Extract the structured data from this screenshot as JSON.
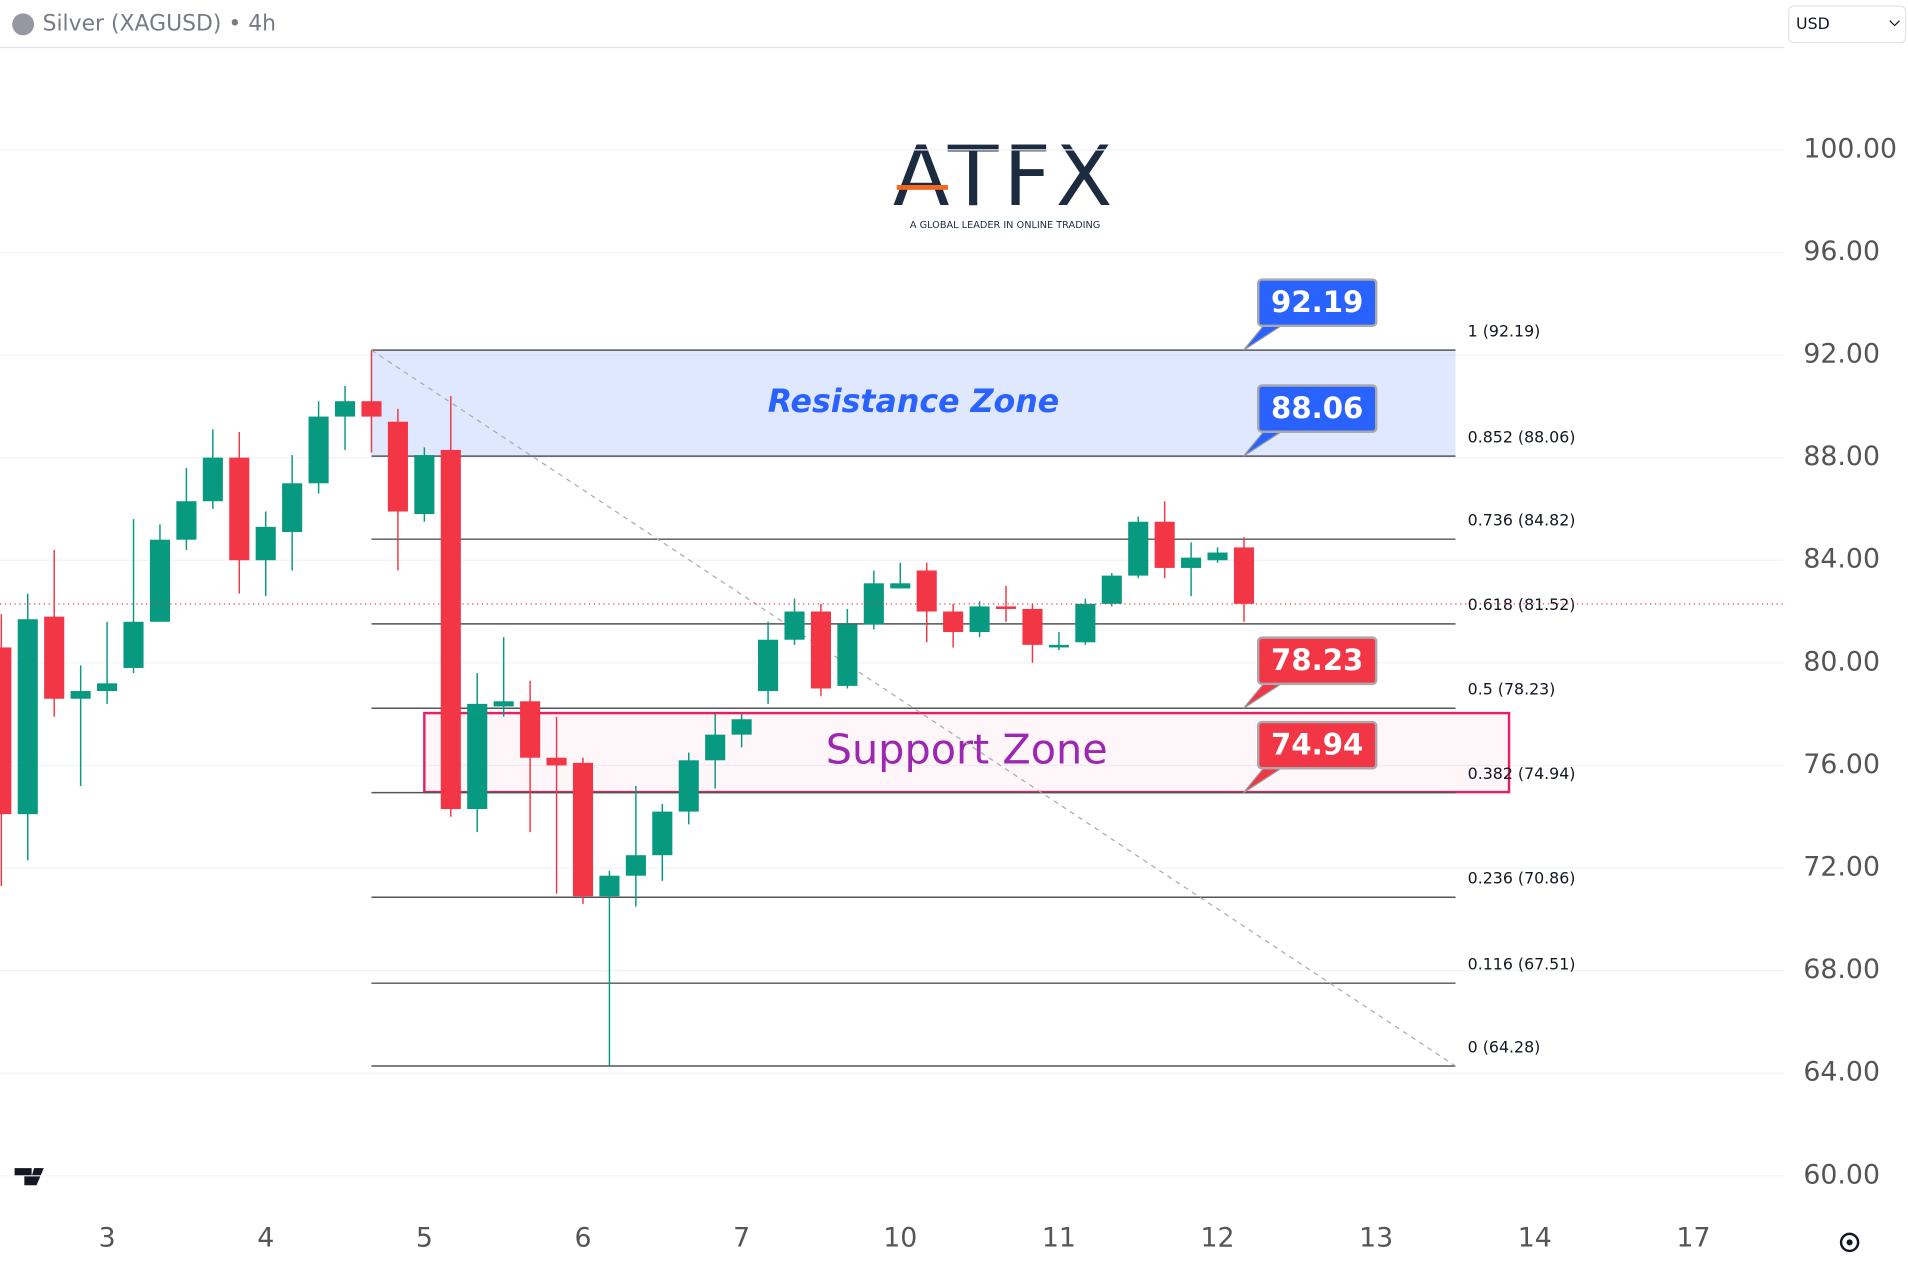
{
  "header": {
    "symbol": "Silver (XAGUSD) • 4h",
    "currency": "USD"
  },
  "logo": {
    "name": "ATFX",
    "tagline": "A GLOBAL LEADER IN ONLINE TRADING"
  },
  "chart_data": {
    "type": "candlestick",
    "x": [
      -4,
      -3,
      -2,
      -1,
      0,
      1,
      2,
      3,
      4,
      5,
      6,
      7,
      8,
      9,
      10,
      11,
      12,
      13,
      14,
      15,
      16,
      17,
      18,
      19,
      20,
      21,
      22,
      23,
      24,
      25,
      26,
      27,
      28,
      29,
      30,
      31,
      32,
      33,
      34,
      35,
      36,
      37,
      38,
      39,
      40,
      41,
      42,
      43
    ],
    "open": [
      80.6,
      74.1,
      81.8,
      78.6,
      78.9,
      79.8,
      81.6,
      84.8,
      86.3,
      88.0,
      84.0,
      85.1,
      87.0,
      89.6,
      90.2,
      89.4,
      85.8,
      88.3,
      74.3,
      78.3,
      78.5,
      76.3,
      76.1,
      70.9,
      71.7,
      72.5,
      74.2,
      76.2,
      77.2,
      78.9,
      80.9,
      82.0,
      79.1,
      81.5,
      82.9,
      83.6,
      82.0,
      81.2,
      82.2,
      82.1,
      80.6,
      80.8,
      82.3,
      83.4,
      85.5,
      83.7,
      84.0,
      84.5
    ],
    "high": [
      81.9,
      82.7,
      84.4,
      79.9,
      81.6,
      85.6,
      85.4,
      87.6,
      89.1,
      89.0,
      85.9,
      88.1,
      90.2,
      90.8,
      92.19,
      89.9,
      88.4,
      90.4,
      79.6,
      81.0,
      79.3,
      77.9,
      76.3,
      71.9,
      75.2,
      74.5,
      76.5,
      78.0,
      78.0,
      81.6,
      82.5,
      82.3,
      82.1,
      83.6,
      83.9,
      83.9,
      82.3,
      82.4,
      83.0,
      82.3,
      81.2,
      82.5,
      83.5,
      85.7,
      86.3,
      84.7,
      84.5,
      84.9
    ],
    "low": [
      71.3,
      72.3,
      77.9,
      75.2,
      78.4,
      79.6,
      81.6,
      84.4,
      86.0,
      82.7,
      82.6,
      83.6,
      86.6,
      88.3,
      88.2,
      83.6,
      85.5,
      74.0,
      73.4,
      77.9,
      73.4,
      71.0,
      70.6,
      64.28,
      70.5,
      71.5,
      73.7,
      75.1,
      76.7,
      78.4,
      80.7,
      78.7,
      79.0,
      81.3,
      82.9,
      80.8,
      80.6,
      81.0,
      81.6,
      80.0,
      80.5,
      80.7,
      82.2,
      83.3,
      83.3,
      82.6,
      83.9,
      81.6
    ],
    "close": [
      74.1,
      81.7,
      78.6,
      78.9,
      79.2,
      81.6,
      84.8,
      86.3,
      88.0,
      84.0,
      85.3,
      87.0,
      89.6,
      90.2,
      89.6,
      85.9,
      88.1,
      74.3,
      78.4,
      78.5,
      76.3,
      76.0,
      70.9,
      71.7,
      72.5,
      74.2,
      76.2,
      77.2,
      77.8,
      80.9,
      82.0,
      79.0,
      81.5,
      83.1,
      83.1,
      82.0,
      81.2,
      82.2,
      82.1,
      80.7,
      80.7,
      82.3,
      83.4,
      85.5,
      83.7,
      84.1,
      84.3,
      82.3
    ],
    "up_color": "#089981",
    "down_color": "#f23645",
    "xlim": [
      -4.05,
      63.42
    ],
    "xticks": [
      {
        "value": 0,
        "label": "3"
      },
      {
        "value": 6,
        "label": "4"
      },
      {
        "value": 12,
        "label": "5"
      },
      {
        "value": 18,
        "label": "6"
      },
      {
        "value": 24,
        "label": "7"
      },
      {
        "value": 30,
        "label": "10"
      },
      {
        "value": 36,
        "label": "11"
      },
      {
        "value": 42,
        "label": "12"
      },
      {
        "value": 48,
        "label": "13"
      },
      {
        "value": 54,
        "label": "14"
      },
      {
        "value": 60,
        "label": "17"
      }
    ],
    "ylim": [
      58.4,
      104
    ],
    "yticks": [
      {
        "value": 60,
        "label": "60.00"
      },
      {
        "value": 64,
        "label": "64.00"
      },
      {
        "value": 68,
        "label": "68.00"
      },
      {
        "value": 72,
        "label": "72.00"
      },
      {
        "value": 76,
        "label": "76.00"
      },
      {
        "value": 80,
        "label": "80.00"
      },
      {
        "value": 84,
        "label": "84.00"
      },
      {
        "value": 88,
        "label": "88.00"
      },
      {
        "value": 92,
        "label": "92.00"
      },
      {
        "value": 96,
        "label": "96.00"
      },
      {
        "value": 100,
        "label": "100.00"
      }
    ],
    "grid": true,
    "fib_levels": [
      {
        "value": 92.19,
        "label": "1 (92.19)"
      },
      {
        "value": 88.06,
        "label": "0.852 (88.06)"
      },
      {
        "value": 84.82,
        "label": "0.736 (84.82)"
      },
      {
        "value": 81.52,
        "label": "0.618 (81.52)"
      },
      {
        "value": 78.23,
        "label": "0.5 (78.23)"
      },
      {
        "value": 74.94,
        "label": "0.382 (74.94)"
      },
      {
        "value": 70.86,
        "label": "0.236 (70.86)"
      },
      {
        "value": 67.51,
        "label": "0.116 (67.51)"
      },
      {
        "value": 64.28,
        "label": "0 (64.28)"
      }
    ],
    "zones": [
      {
        "label": "Resistance Zone",
        "range": [
          88.06,
          92.19
        ],
        "color": "#2962ff"
      },
      {
        "label": "Support Zone",
        "range": [
          74.96,
          78.04
        ],
        "color": "#9c27b0"
      }
    ],
    "price_labels": [
      {
        "value": 92.19,
        "color": "#2962ff"
      },
      {
        "value": 88.06,
        "color": "#2962ff"
      },
      {
        "value": 78.23,
        "color": "#f23645"
      },
      {
        "value": 74.94,
        "color": "#f23645"
      }
    ]
  }
}
